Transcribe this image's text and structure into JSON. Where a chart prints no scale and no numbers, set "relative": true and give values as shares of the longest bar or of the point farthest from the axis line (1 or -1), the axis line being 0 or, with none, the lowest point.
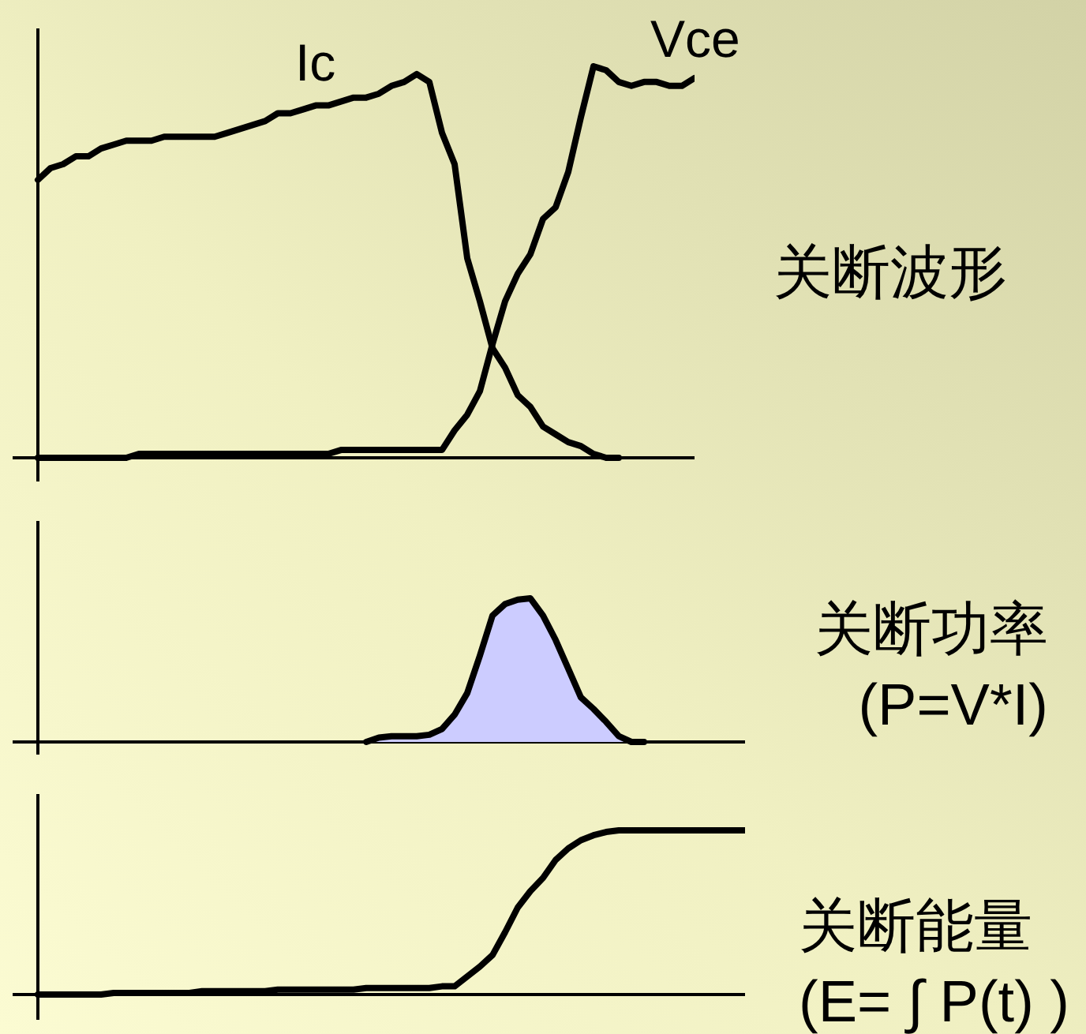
{
  "chart_data": [
    {
      "type": "line",
      "annotations": [
        "关断波形"
      ],
      "relative": true,
      "categories": [
        null,
        null,
        null,
        null,
        null,
        null,
        null,
        null,
        null,
        null,
        null,
        null,
        null,
        null,
        null,
        null,
        null,
        null,
        null,
        null,
        null,
        null,
        null,
        null,
        null,
        null,
        null,
        null,
        null,
        null,
        null,
        null,
        null,
        null,
        null,
        null,
        null,
        null,
        null,
        null,
        null,
        null,
        null,
        null,
        null,
        null,
        null,
        null,
        null,
        null,
        null,
        null,
        null,
        null,
        null
      ],
      "series": [
        {
          "name": "Ic",
          "color": "#000000",
          "values": [
            null,
            null,
            0.71,
            0.74,
            0.75,
            0.77,
            0.77,
            0.79,
            0.8,
            0.81,
            0.81,
            0.81,
            0.82,
            0.82,
            0.82,
            0.82,
            0.82,
            0.83,
            0.84,
            0.85,
            0.86,
            0.88,
            0.88,
            0.89,
            0.9,
            0.9,
            0.91,
            0.92,
            0.92,
            0.93,
            0.95,
            0.96,
            0.98,
            0.96,
            0.83,
            0.75,
            0.51,
            0.4,
            0.28,
            0.23,
            0.16,
            0.13,
            0.08,
            0.06,
            0.04,
            0.03,
            0.01,
            0,
            0,
            null,
            null,
            null,
            null,
            null,
            null
          ]
        },
        {
          "name": "Vce",
          "color": "#000000",
          "values": [
            null,
            null,
            0,
            0,
            0,
            0,
            0,
            0,
            0,
            0,
            0.01,
            0.01,
            0.01,
            0.01,
            0.01,
            0.01,
            0.01,
            0.01,
            0.01,
            0.01,
            0.01,
            0.01,
            0.01,
            0.01,
            0.01,
            0.01,
            0.02,
            0.02,
            0.02,
            0.02,
            0.02,
            0.02,
            0.02,
            0.02,
            0.02,
            0.07,
            0.11,
            0.17,
            0.29,
            0.4,
            0.47,
            0.52,
            0.61,
            0.64,
            0.73,
            0.87,
            1,
            0.99,
            0.96,
            0.95,
            0.96,
            0.96,
            0.95,
            0.95,
            0.97
          ]
        }
      ]
    },
    {
      "type": "area",
      "annotations": [
        "关断功率\n(P=V*I)"
      ],
      "relative": true,
      "color": "#ccccff",
      "categories": [
        null,
        null,
        null,
        null,
        null,
        null,
        null,
        null,
        null,
        null,
        null,
        null,
        null,
        null,
        null,
        null,
        null,
        null,
        null,
        null,
        null,
        null,
        null,
        null,
        null,
        null,
        null,
        null,
        null,
        null,
        null,
        null,
        null,
        null,
        null,
        null,
        null,
        null,
        null,
        null,
        null,
        null,
        null,
        null,
        null,
        null,
        null,
        null,
        null,
        null,
        null,
        null,
        null,
        null,
        null,
        null,
        null,
        null,
        null
      ],
      "values": [
        null,
        null,
        null,
        null,
        null,
        null,
        null,
        null,
        null,
        null,
        null,
        null,
        null,
        null,
        null,
        null,
        null,
        null,
        null,
        null,
        null,
        null,
        null,
        null,
        null,
        null,
        null,
        null,
        0,
        0.03,
        0.04,
        0.04,
        0.04,
        0.05,
        0.09,
        0.19,
        0.34,
        0.6,
        0.88,
        0.96,
        0.99,
        1,
        0.88,
        0.71,
        0.51,
        0.31,
        0.23,
        0.14,
        0.04,
        0,
        0,
        null,
        null,
        null,
        null,
        null,
        null,
        null,
        null
      ]
    },
    {
      "type": "line",
      "annotations": [
        "关断能量\n(E= ∫ P(t) )"
      ],
      "relative": true,
      "color": "#000000",
      "categories": [
        null,
        null,
        null,
        null,
        null,
        null,
        null,
        null,
        null,
        null,
        null,
        null,
        null,
        null,
        null,
        null,
        null,
        null,
        null,
        null,
        null,
        null,
        null,
        null,
        null,
        null,
        null,
        null,
        null,
        null,
        null,
        null,
        null,
        null,
        null,
        null,
        null,
        null,
        null,
        null,
        null,
        null,
        null,
        null,
        null,
        null,
        null,
        null,
        null,
        null,
        null,
        null,
        null,
        null,
        null,
        null,
        null,
        null,
        null
      ],
      "values": [
        null,
        null,
        0,
        0,
        0,
        0,
        0,
        0,
        0.01,
        0.01,
        0.01,
        0.01,
        0.01,
        0.01,
        0.01,
        0.02,
        0.02,
        0.02,
        0.02,
        0.02,
        0.02,
        0.03,
        0.03,
        0.03,
        0.03,
        0.03,
        0.03,
        0.03,
        0.04,
        0.04,
        0.04,
        0.04,
        0.04,
        0.04,
        0.05,
        0.05,
        0.11,
        0.17,
        0.24,
        0.38,
        0.53,
        0.63,
        0.71,
        0.82,
        0.89,
        0.94,
        0.97,
        0.99,
        1,
        1,
        1,
        1,
        1,
        1,
        1,
        1,
        1,
        1,
        1
      ]
    }
  ]
}
